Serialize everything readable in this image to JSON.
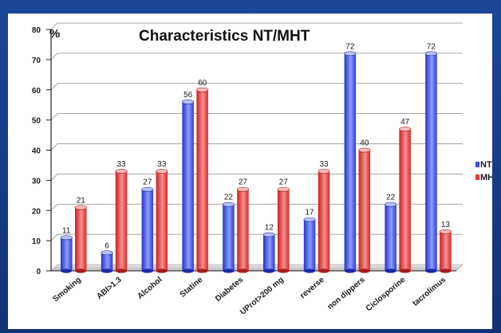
{
  "chart_data": {
    "type": "bar",
    "title": "Characteristics NT/MHT",
    "ylabel": "%",
    "ylim": [
      0,
      80
    ],
    "yticks": [
      0,
      10,
      20,
      30,
      40,
      50,
      60,
      70,
      80
    ],
    "grid": true,
    "legend_position": "right",
    "categories": [
      "Smoking",
      "ABI>1.3",
      "Alcohol",
      "Statine",
      "Diabetes",
      "UProt>200 mg",
      "reverse",
      "non dippers",
      "Ciclosporine",
      "tacrolimus"
    ],
    "series": [
      {
        "name": "NT",
        "color": "#3a50e6",
        "values": [
          11,
          6,
          27,
          56,
          22,
          12,
          17,
          72,
          22,
          72
        ]
      },
      {
        "name": "MHT",
        "color": "#e83a3a",
        "values": [
          21,
          33,
          33,
          60,
          27,
          27,
          33,
          40,
          47,
          13
        ]
      }
    ]
  },
  "colors": {
    "background": "#173a86",
    "panel": "#ffffff",
    "nt": "#3a50e6",
    "mht": "#e83a3a"
  }
}
